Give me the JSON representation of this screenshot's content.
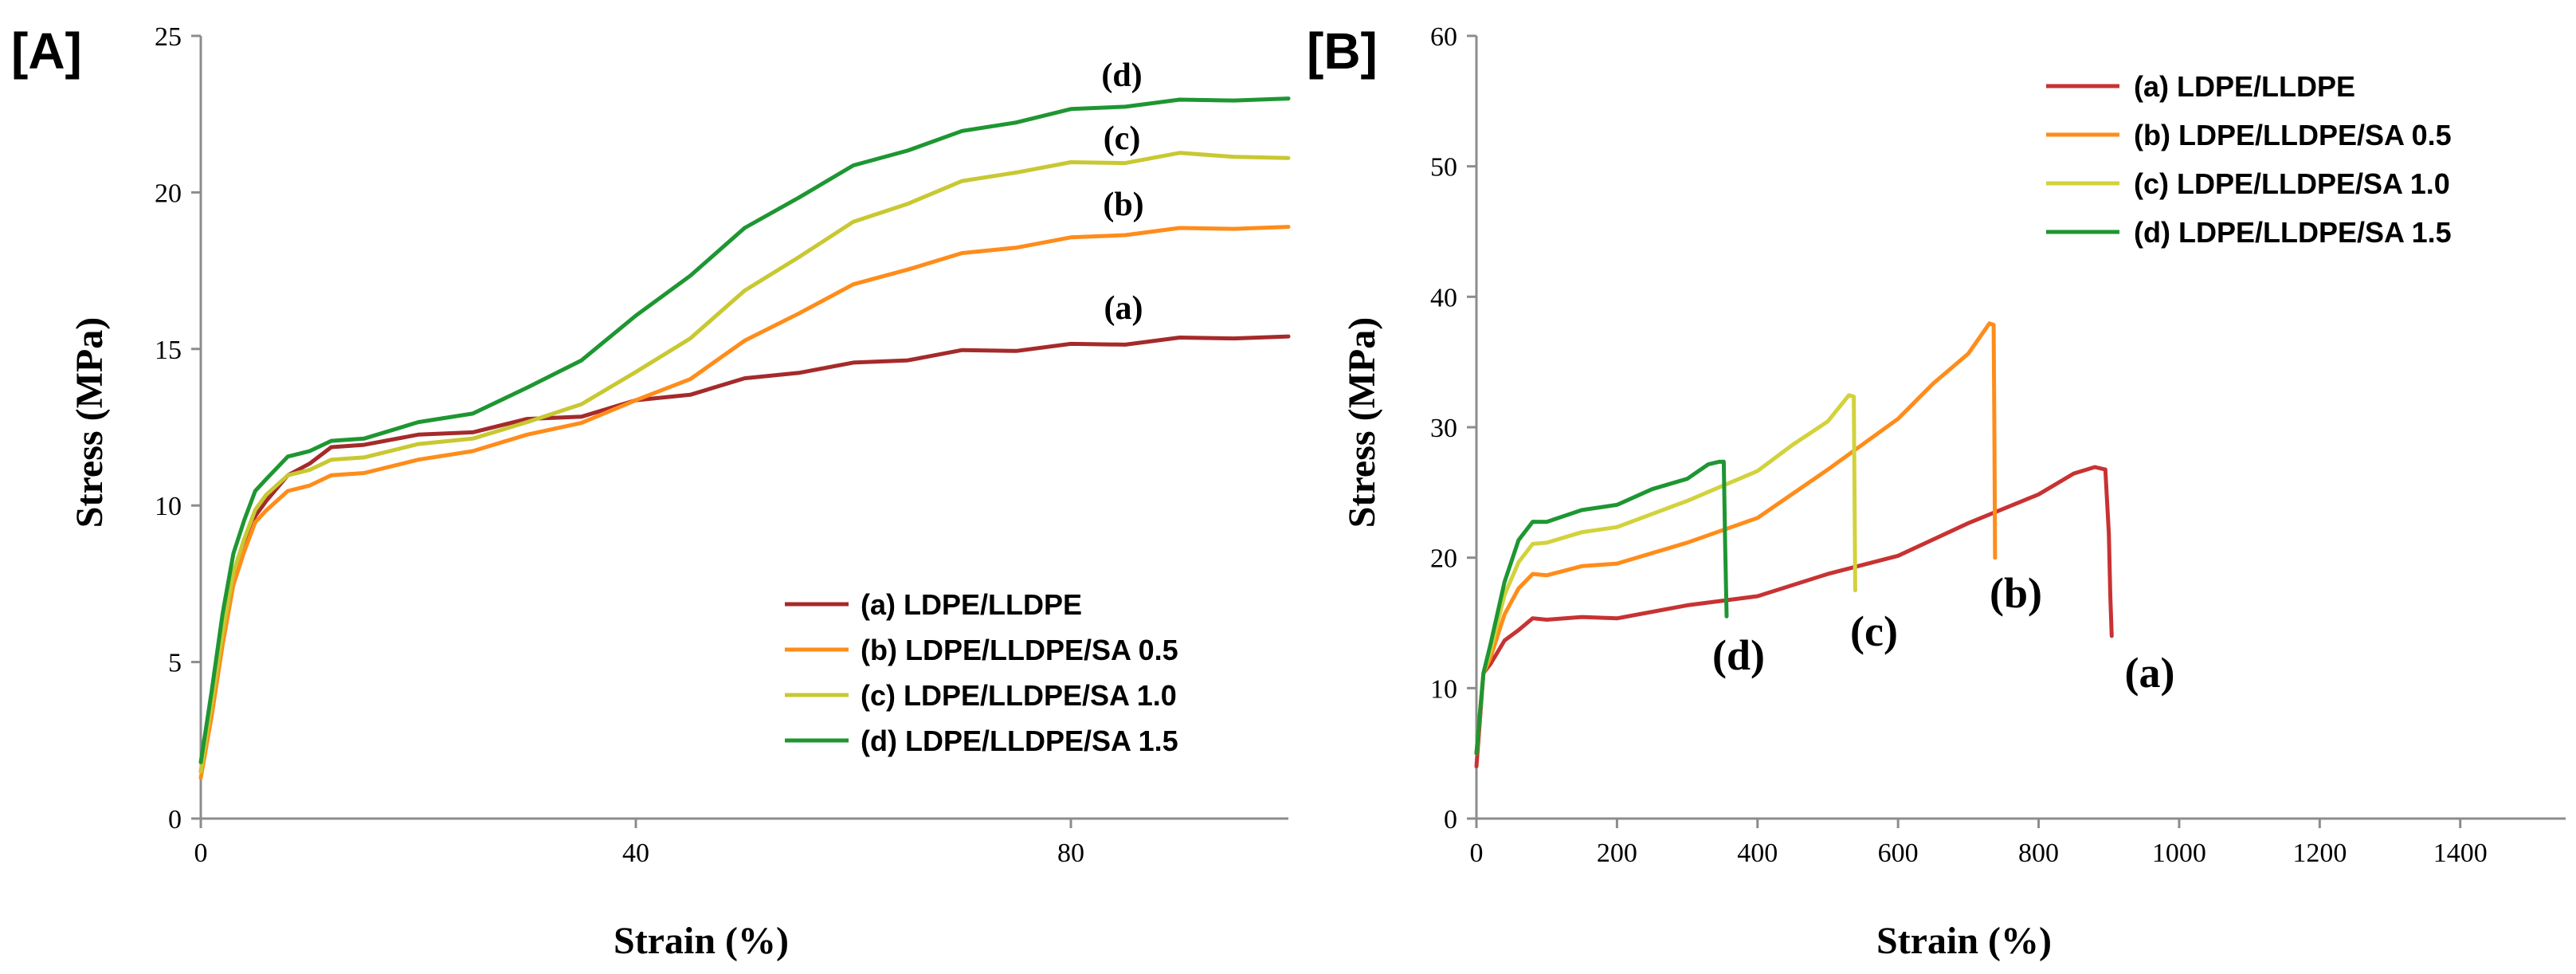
{
  "chart_data": [
    {
      "panel_label": "[A]",
      "type": "line",
      "xlabel": "Strain (%)",
      "ylabel": "Stress (MPa)",
      "xlim": [
        0,
        100
      ],
      "ylim": [
        0,
        25
      ],
      "xticks": [
        0,
        40,
        80
      ],
      "yticks": [
        0,
        5,
        10,
        15,
        20,
        25
      ],
      "grid": false,
      "legend_position": "bottom-right",
      "series": [
        {
          "name": "(a) LDPE/LLDPE",
          "short": "(a)",
          "color": "#a52a2a",
          "x": [
            0,
            1,
            2,
            3,
            4,
            5,
            6,
            8,
            10,
            12,
            15,
            20,
            25,
            30,
            35,
            40,
            45,
            50,
            55,
            60,
            65,
            70,
            75,
            80,
            85,
            90,
            95,
            100
          ],
          "y": [
            1.5,
            3.5,
            5.8,
            7.5,
            8.7,
            9.6,
            10.2,
            10.9,
            11.4,
            11.8,
            12.0,
            12.2,
            12.4,
            12.7,
            12.9,
            13.3,
            13.6,
            14.0,
            14.3,
            14.5,
            14.7,
            14.9,
            15.0,
            15.1,
            15.2,
            15.3,
            15.4,
            15.4
          ]
        },
        {
          "name": "(b) LDPE/LLDPE/SA 0.5",
          "short": "(b)",
          "color": "#ff8c1a",
          "x": [
            0,
            1,
            2,
            3,
            4,
            5,
            6,
            8,
            10,
            12,
            15,
            20,
            25,
            30,
            35,
            40,
            45,
            50,
            55,
            60,
            65,
            70,
            75,
            80,
            85,
            90,
            95,
            100
          ],
          "y": [
            1.3,
            3.2,
            5.6,
            7.4,
            8.6,
            9.4,
            9.9,
            10.4,
            10.7,
            10.9,
            11.1,
            11.4,
            11.8,
            12.2,
            12.7,
            13.3,
            14.1,
            15.2,
            16.2,
            17.0,
            17.6,
            18.0,
            18.3,
            18.5,
            18.7,
            18.8,
            18.9,
            18.9
          ]
        },
        {
          "name": "(c) LDPE/LLDPE/SA 1.0",
          "short": "(c)",
          "color": "#c8c832",
          "x": [
            0,
            1,
            2,
            3,
            4,
            5,
            6,
            8,
            10,
            12,
            15,
            20,
            25,
            30,
            35,
            40,
            45,
            50,
            55,
            60,
            65,
            70,
            75,
            80,
            85,
            90,
            95,
            100
          ],
          "y": [
            1.5,
            3.6,
            6.0,
            7.8,
            9.0,
            9.8,
            10.4,
            10.9,
            11.2,
            11.4,
            11.6,
            11.9,
            12.2,
            12.6,
            13.3,
            14.2,
            15.4,
            16.8,
            18.0,
            19.0,
            19.7,
            20.3,
            20.7,
            20.9,
            21.0,
            21.2,
            21.2,
            21.1
          ]
        },
        {
          "name": "(d) LDPE/LLDPE/SA 1.5",
          "short": "(d)",
          "color": "#1e9632",
          "x": [
            0,
            1,
            2,
            3,
            4,
            5,
            6,
            8,
            10,
            12,
            15,
            20,
            25,
            30,
            35,
            40,
            45,
            50,
            55,
            60,
            65,
            70,
            75,
            80,
            85,
            90,
            95,
            100
          ],
          "y": [
            1.8,
            4.0,
            6.6,
            8.4,
            9.6,
            10.4,
            10.9,
            11.5,
            11.8,
            12.0,
            12.2,
            12.6,
            13.0,
            13.7,
            14.7,
            16.0,
            17.4,
            18.8,
            19.9,
            20.8,
            21.4,
            21.9,
            22.3,
            22.6,
            22.8,
            22.9,
            23.0,
            23.0
          ]
        }
      ],
      "annotations": [
        "(d)",
        "(c)",
        "(b)",
        "(a)"
      ]
    },
    {
      "panel_label": "[B]",
      "type": "line",
      "xlabel": "Strain (%)",
      "ylabel": "Stress (MPa)",
      "xlim": [
        0,
        1550
      ],
      "ylim": [
        0,
        60
      ],
      "xticks": [
        0,
        200,
        400,
        600,
        800,
        1000,
        1200,
        1400
      ],
      "yticks": [
        0,
        10,
        20,
        30,
        40,
        50,
        60
      ],
      "grid": false,
      "legend_position": "top-right",
      "series": [
        {
          "name": "(a) LDPE/LLDPE",
          "short": "(a)",
          "color": "#c83232",
          "x": [
            0,
            10,
            20,
            40,
            60,
            80,
            100,
            150,
            200,
            300,
            400,
            500,
            600,
            700,
            800,
            850,
            880,
            895,
            900,
            902,
            904
          ],
          "y": [
            4,
            11,
            12,
            13.5,
            14.6,
            15.2,
            15.4,
            15.3,
            15.5,
            16.2,
            17.2,
            18.6,
            20.3,
            22.5,
            25.0,
            26.3,
            27.1,
            26.6,
            22.0,
            17.0,
            14.0
          ]
        },
        {
          "name": "(b) LDPE/LLDPE/SA 0.5",
          "short": "(b)",
          "color": "#ff8c1a",
          "x": [
            0,
            10,
            20,
            40,
            60,
            80,
            100,
            150,
            200,
            300,
            400,
            500,
            600,
            650,
            700,
            730,
            736,
            737,
            738
          ],
          "y": [
            5,
            11,
            12.5,
            15.5,
            17.8,
            18.6,
            18.8,
            19.2,
            19.7,
            21.0,
            23.2,
            26.6,
            30.8,
            33.2,
            35.8,
            37.8,
            38.0,
            30.0,
            20.0
          ]
        },
        {
          "name": "(c) LDPE/LLDPE/SA 1.0",
          "short": "(c)",
          "color": "#d2d23c",
          "x": [
            0,
            10,
            20,
            40,
            60,
            80,
            100,
            150,
            200,
            300,
            400,
            450,
            500,
            530,
            537,
            538,
            539
          ],
          "y": [
            5,
            11,
            13,
            17,
            19.8,
            20.9,
            21.3,
            21.8,
            22.5,
            24.2,
            26.8,
            28.5,
            30.6,
            32.3,
            32.5,
            25.0,
            17.5
          ]
        },
        {
          "name": "(d) LDPE/LLDPE/SA 1.5",
          "short": "(d)",
          "color": "#1e9632",
          "x": [
            0,
            10,
            20,
            40,
            60,
            80,
            100,
            150,
            200,
            250,
            300,
            330,
            345,
            352,
            354,
            356
          ],
          "y": [
            5,
            11,
            13.5,
            18,
            21.5,
            22.6,
            22.9,
            23.5,
            24.2,
            25.1,
            26.2,
            27.0,
            27.5,
            27.2,
            21.0,
            15.5
          ]
        }
      ],
      "annotations": [
        "(d)",
        "(c)",
        "(b)",
        "(a)"
      ]
    }
  ]
}
